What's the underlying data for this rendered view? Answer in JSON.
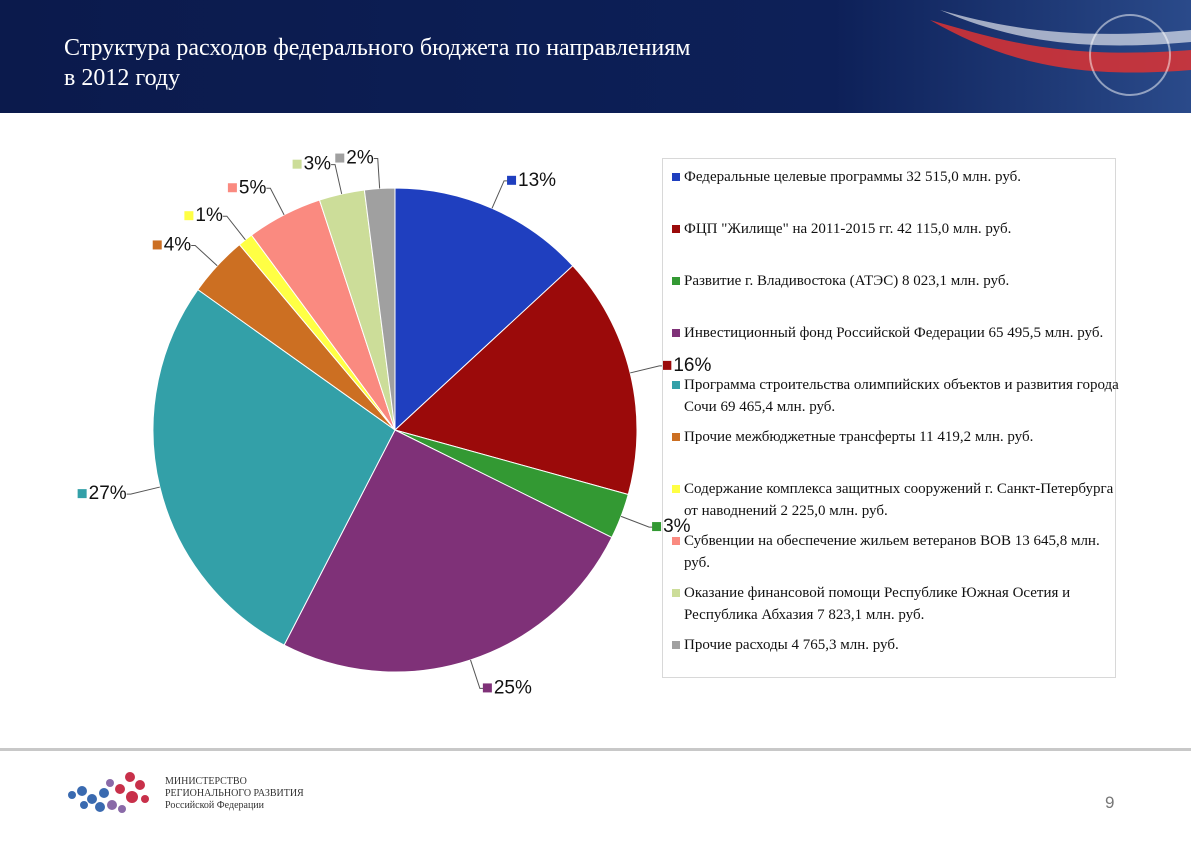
{
  "header": {
    "title": "Структура расходов федерального бюджета по направлениям\nв 2012 году"
  },
  "chart_data": {
    "type": "pie",
    "categories": [
      "Федеральные целевые программы 32 515,0 млн. руб.",
      "ФЦП \"Жилище\" на 2011-2015 гг. 42 115,0 млн. руб.",
      "Развитие г. Владивостока (АТЭС) 8 023,1 млн. руб.",
      "Инвестиционный фонд Российской Федерации 65 495,5 млн. руб.",
      "Программа строительства олимпийских объектов и развития города Сочи 69 465,4 млн. руб.",
      "Прочие межбюджетные трансферты 11 419,2 млн. руб.",
      "Содержание комплекса защитных сооружений г. Санкт-Петербурга от наводнений 2 225,0 млн. руб.",
      "Субвенции на обеспечение жильем ветеранов ВОВ 13 645,8 млн. руб.",
      "Оказание финансовой помощи Республике Южная Осетия и Республика Абхазия 7 823,1 млн. руб.",
      "Прочие расходы 4 765,3 млн. руб."
    ],
    "values": [
      13,
      16,
      3,
      25,
      27,
      4,
      1,
      5,
      3,
      2
    ],
    "value_labels": [
      "13%",
      "16%",
      "3%",
      "25%",
      "27%",
      "4%",
      "1%",
      "5%",
      "3%",
      "2%"
    ],
    "colors": [
      "#1f3fbf",
      "#9b0a0a",
      "#339933",
      "#7f3178",
      "#33a0a8",
      "#cc6f22",
      "#ffff44",
      "#fa8a80",
      "#ccdd99",
      "#a0a0a0"
    ],
    "legend": "right"
  },
  "footer": {
    "org": [
      "МИНИСТЕРСТВО",
      "РЕГИОНАЛЬНОГО РАЗВИТИЯ",
      "Российской Федерации"
    ],
    "page": "9"
  }
}
